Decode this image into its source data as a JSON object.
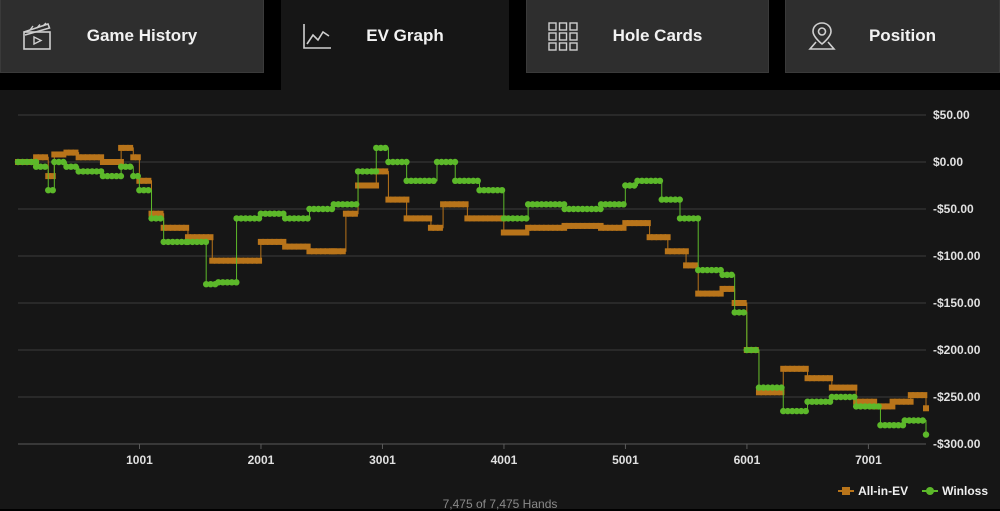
{
  "tabs": [
    {
      "label": "Game History",
      "icon": "clapperboard-icon",
      "active": false
    },
    {
      "label": "EV Graph",
      "icon": "line-chart-icon",
      "active": true
    },
    {
      "label": "Hole Cards",
      "icon": "grid-icon",
      "active": false
    },
    {
      "label": "Position",
      "icon": "map-pin-icon",
      "active": false
    }
  ],
  "footer": {
    "hands_text": "7,475 of 7,475 Hands"
  },
  "legend": {
    "ev_label": "All-in-EV",
    "winloss_label": "Winloss"
  },
  "colors": {
    "ev": "#b8741a",
    "winloss": "#5cb82a",
    "grid": "#3c3c3c",
    "axis_text": "#e0e0e0"
  },
  "chart_data": {
    "type": "line",
    "x_ticks": [
      1001,
      2001,
      3001,
      4001,
      5001,
      6001,
      7001
    ],
    "y_ticks": [
      50,
      0,
      -50,
      -100,
      -150,
      -200,
      -250,
      -300
    ],
    "y_tick_labels": [
      "$50.00",
      "$0.00",
      "-$50.00",
      "-$100.00",
      "-$150.00",
      "-$200.00",
      "-$250.00",
      "-$300.00"
    ],
    "xlim": [
      1,
      7475
    ],
    "ylim": [
      -300,
      50
    ],
    "y_axis_side": "right",
    "legend_position": "bottom-right",
    "series": [
      {
        "name": "All-in-EV",
        "x": [
          1,
          150,
          250,
          300,
          400,
          500,
          700,
          850,
          950,
          1000,
          1100,
          1200,
          1400,
          1600,
          1800,
          2000,
          2200,
          2400,
          2600,
          2700,
          2800,
          2950,
          3050,
          3200,
          3400,
          3500,
          3700,
          4000,
          4200,
          4500,
          4800,
          5000,
          5200,
          5350,
          5500,
          5600,
          5800,
          5900,
          6000,
          6100,
          6300,
          6500,
          6700,
          6900,
          7050,
          7200,
          7350,
          7475
        ],
        "y": [
          0,
          5,
          -15,
          8,
          10,
          5,
          0,
          15,
          5,
          -20,
          -55,
          -70,
          -80,
          -105,
          -105,
          -85,
          -90,
          -95,
          -95,
          -55,
          -25,
          -10,
          -40,
          -60,
          -70,
          -45,
          -60,
          -75,
          -70,
          -68,
          -70,
          -65,
          -80,
          -95,
          -110,
          -140,
          -135,
          -150,
          -200,
          -245,
          -220,
          -230,
          -240,
          -255,
          -260,
          -255,
          -248,
          -262
        ]
      },
      {
        "name": "Winloss",
        "x": [
          1,
          150,
          250,
          300,
          400,
          500,
          700,
          850,
          950,
          1000,
          1100,
          1200,
          1400,
          1550,
          1650,
          1800,
          2000,
          2200,
          2400,
          2600,
          2800,
          2950,
          3050,
          3200,
          3450,
          3600,
          3800,
          4000,
          4200,
          4500,
          4800,
          5000,
          5100,
          5300,
          5450,
          5600,
          5800,
          5900,
          6000,
          6100,
          6300,
          6500,
          6700,
          6900,
          7100,
          7300,
          7475
        ],
        "y": [
          0,
          -5,
          -30,
          0,
          -5,
          -10,
          -15,
          -5,
          -15,
          -30,
          -60,
          -85,
          -85,
          -130,
          -128,
          -60,
          -55,
          -60,
          -50,
          -45,
          -10,
          15,
          0,
          -20,
          0,
          -20,
          -30,
          -60,
          -45,
          -50,
          -45,
          -25,
          -20,
          -40,
          -60,
          -115,
          -120,
          -160,
          -200,
          -240,
          -265,
          -255,
          -250,
          -260,
          -280,
          -275,
          -290
        ]
      }
    ]
  }
}
